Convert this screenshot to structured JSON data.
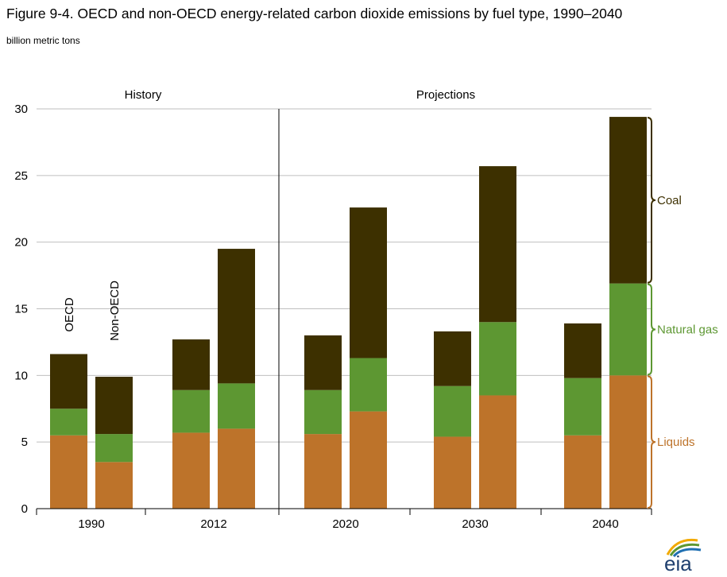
{
  "title": "Figure 9-4. OECD and non-OECD energy-related carbon dioxide emissions by fuel type, 1990–2040",
  "subtitle": "billion metric tons",
  "logo_text": "eia",
  "colors": {
    "coal": "#3d3000",
    "natural_gas": "#5d9732",
    "liquids": "#bd732a",
    "axis": "#000000",
    "grid": "#bfbfbf"
  },
  "chart_data": {
    "type": "bar",
    "stacked": true,
    "ylabel": "",
    "ylim": [
      0,
      30
    ],
    "yticks": [
      0,
      5,
      10,
      15,
      20,
      25,
      30
    ],
    "grid": true,
    "sections": [
      "History",
      "Projections"
    ],
    "groups": [
      "1990",
      "2012",
      "2020",
      "2030",
      "2040"
    ],
    "bar_labels": [
      "OECD",
      "Non-OECD"
    ],
    "categories": [
      "1990 OECD",
      "1990 Non-OECD",
      "2012 OECD",
      "2012 Non-OECD",
      "2020 OECD",
      "2020 Non-OECD",
      "2030 OECD",
      "2030 Non-OECD",
      "2040 OECD",
      "2040 Non-OECD"
    ],
    "series": [
      {
        "name": "Liquids",
        "color": "#bd732a",
        "values": [
          5.5,
          3.5,
          5.7,
          6.0,
          5.6,
          7.3,
          5.4,
          8.5,
          5.5,
          10.0
        ]
      },
      {
        "name": "Natural gas",
        "color": "#5d9732",
        "values": [
          2.0,
          2.1,
          3.2,
          3.4,
          3.3,
          4.0,
          3.8,
          5.5,
          4.3,
          6.9
        ]
      },
      {
        "name": "Coal",
        "color": "#3d3000",
        "values": [
          4.1,
          4.3,
          3.8,
          10.1,
          4.1,
          11.3,
          4.1,
          11.7,
          4.1,
          12.5
        ]
      }
    ],
    "legend": "right, brackets beside 2040 Non-OECD bar"
  }
}
